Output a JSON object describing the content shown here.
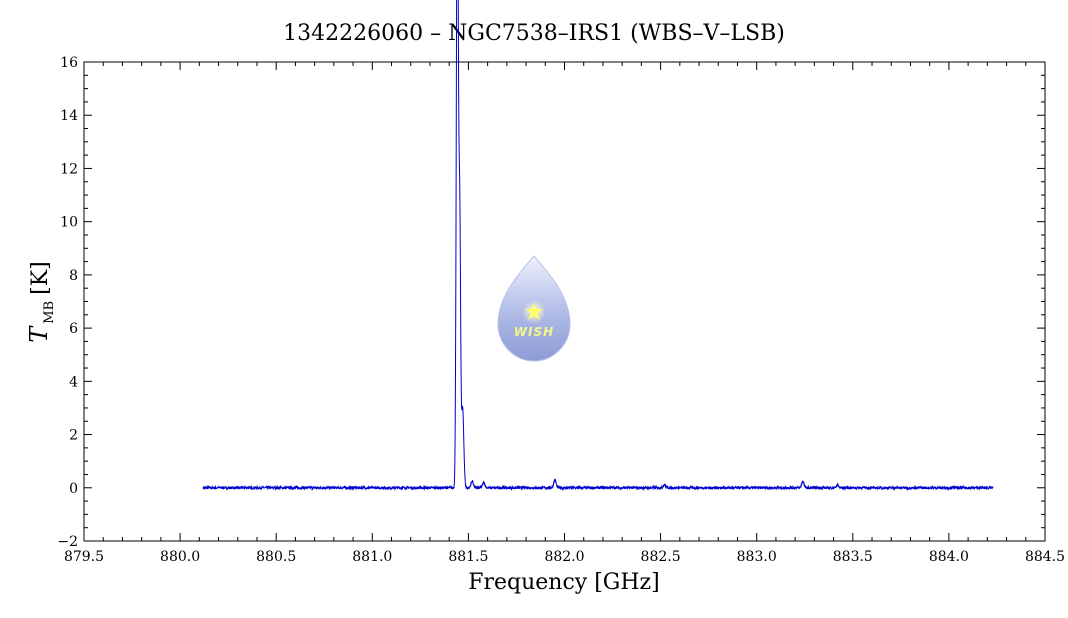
{
  "chart_data": {
    "type": "line",
    "title": "1342226060 – NGC7538–IRS1 (WBS–V–LSB)",
    "xlabel": "Frequency [GHz]",
    "ylabel_main": "T",
    "ylabel_sub": "MB",
    "ylabel_unit": "[K]",
    "xlim": [
      879.5,
      884.5
    ],
    "ylim": [
      -2,
      16
    ],
    "x_ticks": [
      "879.5",
      "880.0",
      "880.5",
      "881.0",
      "881.5",
      "882.0",
      "882.5",
      "883.0",
      "883.5",
      "884.0",
      "884.5"
    ],
    "y_ticks": [
      "−2",
      "0",
      "2",
      "4",
      "6",
      "8",
      "10",
      "12",
      "14",
      "16"
    ],
    "grid": false,
    "series": [
      {
        "color": "#0000cc",
        "range": [
          880.12,
          884.23
        ],
        "baseline": 0.0,
        "noise": 0.05,
        "features": [
          {
            "x": 881.44,
            "peak": 14.0
          },
          {
            "x": 881.445,
            "peak": 13.8
          },
          {
            "x": 881.455,
            "peak": 10.0
          },
          {
            "x": 881.47,
            "peak": 3.0
          },
          {
            "x": 881.52,
            "peak": 0.25
          },
          {
            "x": 881.58,
            "peak": 0.2
          },
          {
            "x": 881.95,
            "peak": 0.3
          },
          {
            "x": 882.52,
            "peak": 0.12
          },
          {
            "x": 883.24,
            "peak": 0.25
          },
          {
            "x": 883.42,
            "peak": 0.1
          }
        ]
      }
    ]
  },
  "logo": {
    "text": "WISH",
    "colors": {
      "drop_top": "#e8ecf8",
      "drop_bottom": "#9aa8dc",
      "star": "#ffff66"
    }
  }
}
